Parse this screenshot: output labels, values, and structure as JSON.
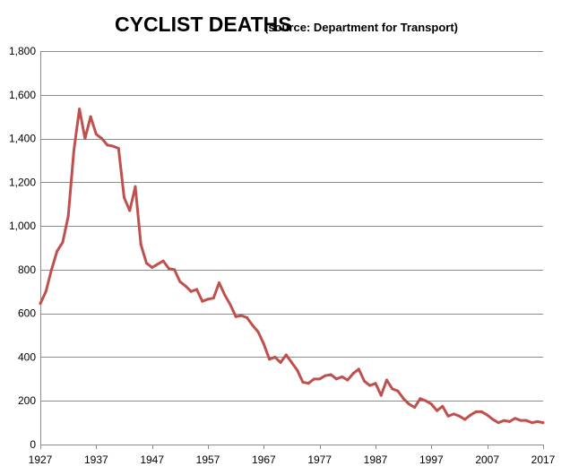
{
  "chart_data": {
    "type": "line",
    "title": "CYCLIST DEATHS",
    "subtitle": "(source: Department for Transport)",
    "xlabel": "",
    "ylabel": "",
    "xlim": [
      1927,
      2017
    ],
    "ylim": [
      0,
      1800
    ],
    "grid": true,
    "legend": "none",
    "x_ticks": [
      1927,
      1937,
      1947,
      1957,
      1967,
      1977,
      1987,
      1997,
      2007,
      2017
    ],
    "x_tick_labels": [
      "1927",
      "1937",
      "1947",
      "1957",
      "1967",
      "1977",
      "1987",
      "1997",
      "2007",
      "2017"
    ],
    "y_ticks": [
      0,
      200,
      400,
      600,
      800,
      1000,
      1200,
      1400,
      1600,
      1800
    ],
    "y_tick_labels": [
      "0",
      "200",
      "400",
      "600",
      "800",
      "1,000",
      "1,200",
      "1,400",
      "1,600",
      "1,800"
    ],
    "series": [
      {
        "name": "Cyclist deaths",
        "color": "#c0504d",
        "x": [
          1927,
          1928,
          1929,
          1930,
          1931,
          1932,
          1933,
          1934,
          1935,
          1936,
          1937,
          1938,
          1939,
          1940,
          1941,
          1942,
          1943,
          1944,
          1945,
          1946,
          1947,
          1948,
          1949,
          1950,
          1951,
          1952,
          1953,
          1954,
          1955,
          1956,
          1957,
          1958,
          1959,
          1960,
          1961,
          1962,
          1963,
          1964,
          1965,
          1966,
          1967,
          1968,
          1969,
          1970,
          1971,
          1972,
          1973,
          1974,
          1975,
          1976,
          1977,
          1978,
          1979,
          1980,
          1981,
          1982,
          1983,
          1984,
          1985,
          1986,
          1987,
          1988,
          1989,
          1990,
          1991,
          1992,
          1993,
          1994,
          1995,
          1996,
          1997,
          1998,
          1999,
          2000,
          2001,
          2002,
          2003,
          2004,
          2005,
          2006,
          2007,
          2008,
          2009,
          2010,
          2011,
          2012,
          2013,
          2014,
          2015,
          2016,
          2017
        ],
        "values": [
          645,
          700,
          800,
          885,
          925,
          1045,
          1345,
          1535,
          1400,
          1500,
          1420,
          1400,
          1370,
          1365,
          1355,
          1130,
          1070,
          1180,
          915,
          830,
          810,
          825,
          840,
          805,
          800,
          745,
          725,
          700,
          710,
          655,
          665,
          670,
          740,
          685,
          640,
          585,
          590,
          580,
          545,
          515,
          460,
          390,
          400,
          375,
          410,
          375,
          340,
          285,
          280,
          300,
          300,
          315,
          320,
          300,
          310,
          295,
          325,
          345,
          290,
          270,
          280,
          225,
          295,
          255,
          245,
          210,
          185,
          170,
          210,
          200,
          185,
          155,
          175,
          130,
          140,
          130,
          115,
          135,
          150,
          150,
          135,
          115,
          100,
          110,
          105,
          120,
          110,
          110,
          100,
          105,
          100
        ]
      }
    ]
  }
}
